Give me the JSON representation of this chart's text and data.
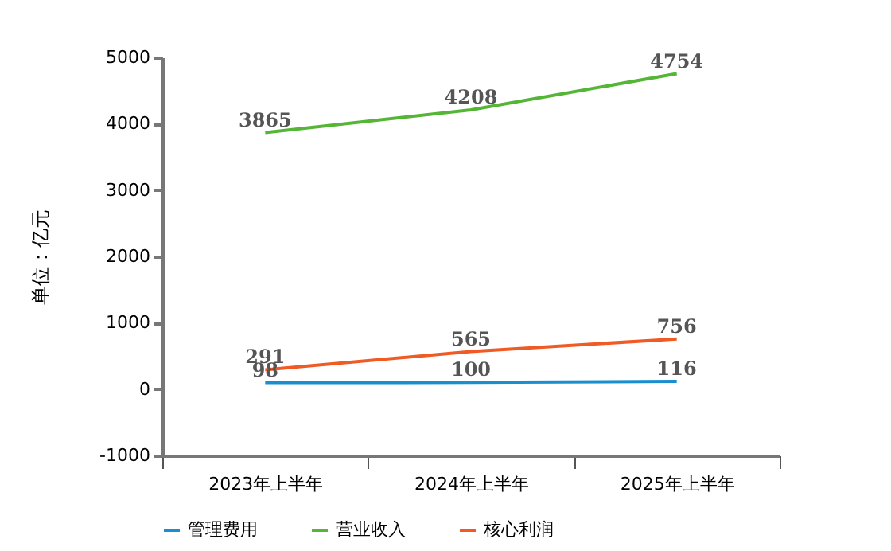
{
  "chart_data": {
    "type": "line",
    "ylabel": "单位：亿元",
    "categories": [
      "2023年上半年",
      "2024年上半年",
      "2025年上半年"
    ],
    "series": [
      {
        "name": "管理费用",
        "color": "#1a8fd0",
        "values": [
          98,
          100,
          116
        ]
      },
      {
        "name": "营业收入",
        "color": "#55b536",
        "values": [
          3865,
          4208,
          4754
        ]
      },
      {
        "name": "核心利润",
        "color": "#f05a24",
        "values": [
          291,
          565,
          756
        ]
      }
    ],
    "ylim": [
      -1000,
      5000
    ],
    "yticks": [
      -1000,
      0,
      1000,
      2000,
      3000,
      4000,
      5000
    ],
    "grid": false,
    "legend": "bottom",
    "data_labels": true,
    "marker": "none"
  }
}
